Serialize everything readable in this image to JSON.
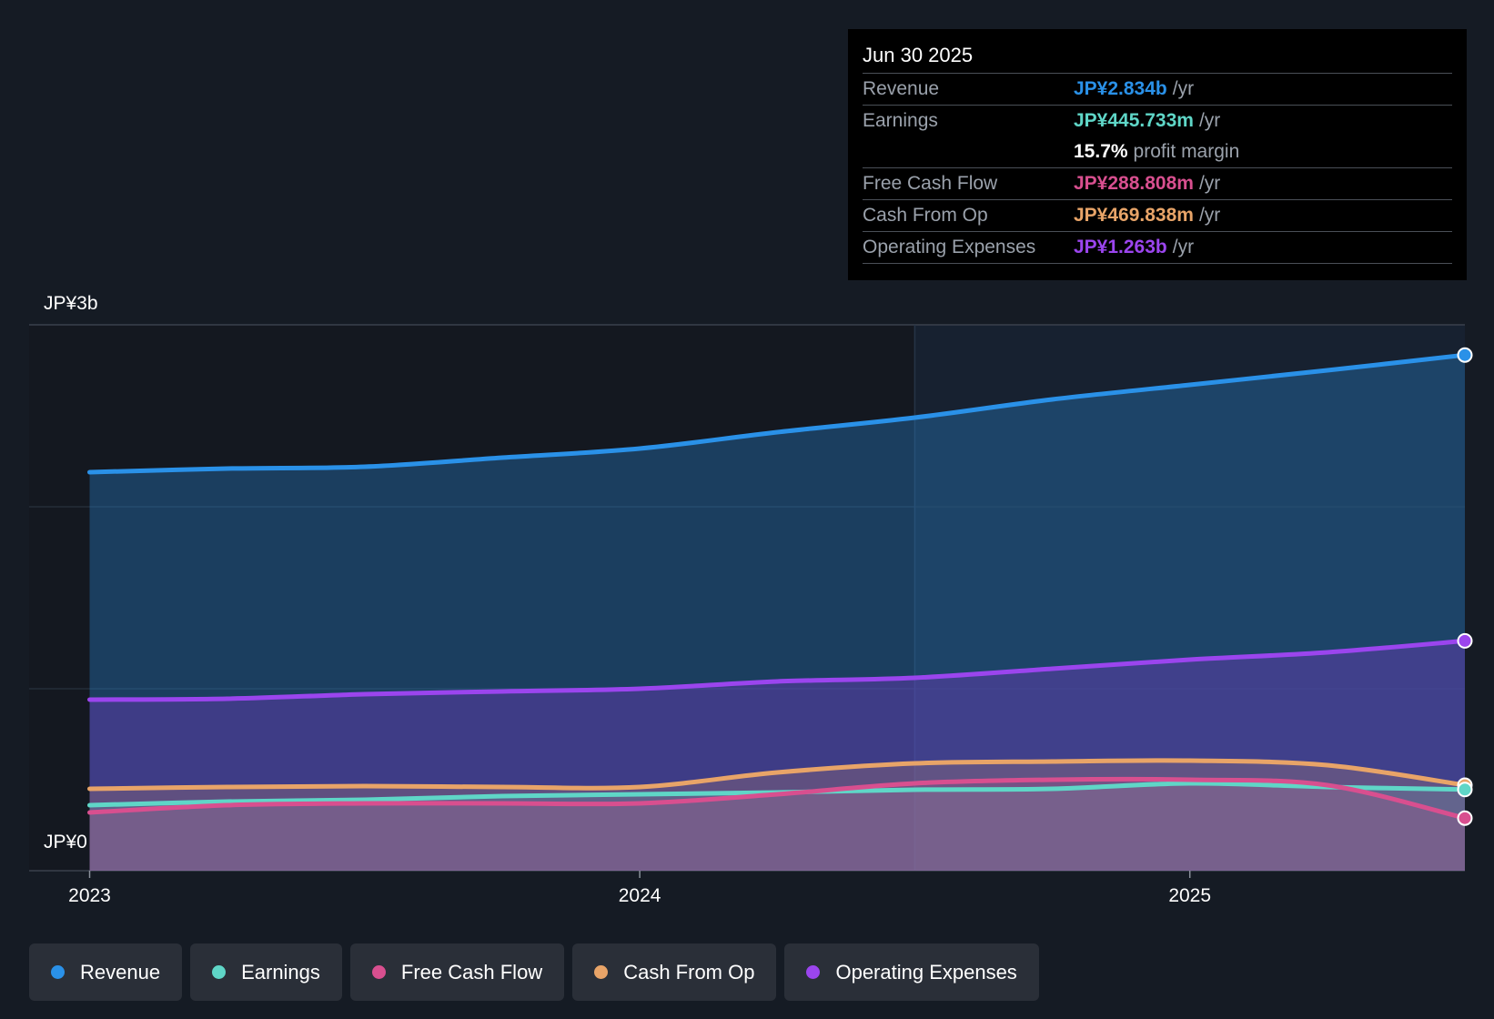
{
  "chart_data": {
    "type": "area",
    "y_axis": {
      "top_label": "JP¥3b",
      "bottom_label": "JP¥0",
      "ylim": [
        0,
        3.0
      ],
      "unit": "JP¥ billions"
    },
    "x_axis": {
      "ticks": [
        "2023",
        "2024",
        "2025"
      ],
      "tick_values": [
        2023.0,
        2024.0,
        2025.0
      ],
      "xlim": [
        2022.89,
        2025.5
      ]
    },
    "highlight_start": 2024.5,
    "series": [
      {
        "name": "Revenue",
        "color": "#2a91e8",
        "fill": "rgba(38,117,184,0.42)",
        "x": [
          2023.0,
          2023.25,
          2023.5,
          2023.75,
          2024.0,
          2024.25,
          2024.5,
          2024.75,
          2025.0,
          2025.25,
          2025.5
        ],
        "values": [
          2.19,
          2.21,
          2.22,
          2.27,
          2.32,
          2.41,
          2.49,
          2.59,
          2.67,
          2.75,
          2.834
        ]
      },
      {
        "name": "Operating Expenses",
        "color": "#9b45ee",
        "fill": "rgba(120,58,196,0.38)",
        "x": [
          2023.0,
          2023.25,
          2023.5,
          2023.75,
          2024.0,
          2024.25,
          2024.5,
          2024.75,
          2025.0,
          2025.25,
          2025.5
        ],
        "values": [
          0.94,
          0.945,
          0.97,
          0.985,
          1.0,
          1.04,
          1.06,
          1.11,
          1.16,
          1.2,
          1.263
        ]
      },
      {
        "name": "Cash From Op",
        "color": "#e8a468",
        "fill": "rgba(214,150,110,0.22)",
        "x": [
          2023.0,
          2023.25,
          2023.5,
          2023.75,
          2024.0,
          2024.25,
          2024.5,
          2024.75,
          2025.0,
          2025.25,
          2025.5
        ],
        "values": [
          0.45,
          0.46,
          0.465,
          0.46,
          0.46,
          0.54,
          0.59,
          0.6,
          0.605,
          0.58,
          0.47
        ]
      },
      {
        "name": "Earnings",
        "color": "#5fd6c7",
        "fill": "rgba(110,190,190,0.16)",
        "x": [
          2023.0,
          2023.25,
          2023.5,
          2023.75,
          2024.0,
          2024.25,
          2024.5,
          2024.75,
          2025.0,
          2025.25,
          2025.5
        ],
        "values": [
          0.36,
          0.38,
          0.39,
          0.41,
          0.42,
          0.43,
          0.445,
          0.45,
          0.48,
          0.46,
          0.446
        ]
      },
      {
        "name": "Free Cash Flow",
        "color": "#d84f8f",
        "fill": "rgba(200,80,140,0.2)",
        "x": [
          2023.0,
          2023.25,
          2023.5,
          2023.75,
          2024.0,
          2024.25,
          2024.5,
          2024.75,
          2025.0,
          2025.25,
          2025.5
        ],
        "values": [
          0.32,
          0.36,
          0.37,
          0.37,
          0.37,
          0.42,
          0.48,
          0.5,
          0.5,
          0.47,
          0.289
        ]
      }
    ]
  },
  "tooltip": {
    "date": "Jun 30 2025",
    "per_year": "/yr",
    "rows": [
      {
        "label": "Revenue",
        "value": "JP¥2.834b",
        "color": "#2a91e8"
      },
      {
        "label": "Earnings",
        "value": "JP¥445.733m",
        "color": "#5fd6c7"
      },
      {
        "label": "Free Cash Flow",
        "value": "JP¥288.808m",
        "color": "#d84f8f"
      },
      {
        "label": "Cash From Op",
        "value": "JP¥469.838m",
        "color": "#e8a468"
      },
      {
        "label": "Operating Expenses",
        "value": "JP¥1.263b",
        "color": "#9b45ee"
      }
    ],
    "margin_value": "15.7%",
    "margin_label": "profit margin"
  },
  "legend": [
    {
      "label": "Revenue",
      "color": "#2a91e8"
    },
    {
      "label": "Earnings",
      "color": "#5fd6c7"
    },
    {
      "label": "Free Cash Flow",
      "color": "#d84f8f"
    },
    {
      "label": "Cash From Op",
      "color": "#e8a468"
    },
    {
      "label": "Operating Expenses",
      "color": "#9b45ee"
    }
  ]
}
